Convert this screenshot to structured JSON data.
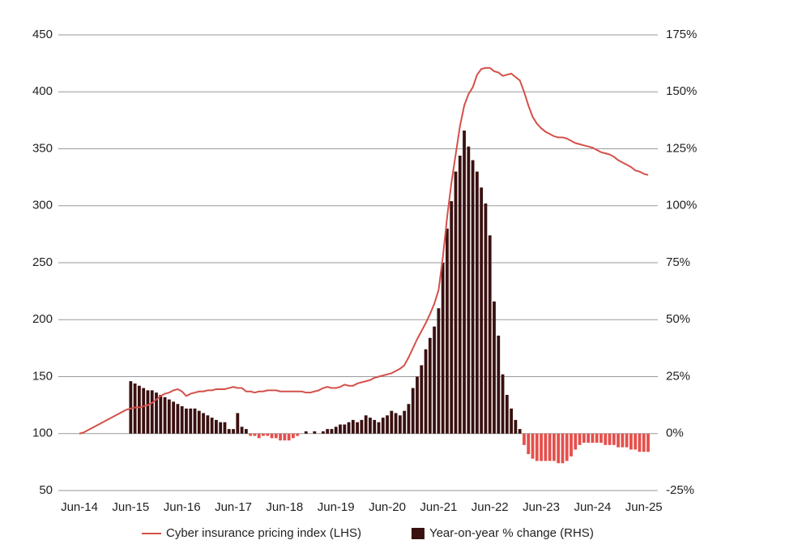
{
  "chart_data": {
    "type": "combo",
    "categories": [
      "Jun-14",
      null,
      null,
      null,
      null,
      null,
      null,
      null,
      null,
      null,
      null,
      null,
      "Jun-15",
      null,
      null,
      null,
      null,
      null,
      null,
      null,
      null,
      null,
      null,
      null,
      "Jun-16",
      null,
      null,
      null,
      null,
      null,
      null,
      null,
      null,
      null,
      null,
      null,
      "Jun-17",
      null,
      null,
      null,
      null,
      null,
      null,
      null,
      null,
      null,
      null,
      null,
      "Jun-18",
      null,
      null,
      null,
      null,
      null,
      null,
      null,
      null,
      null,
      null,
      null,
      "Jun-19",
      null,
      null,
      null,
      null,
      null,
      null,
      null,
      null,
      null,
      null,
      null,
      "Jun-20",
      null,
      null,
      null,
      null,
      null,
      null,
      null,
      null,
      null,
      null,
      null,
      "Jun-21",
      null,
      null,
      null,
      null,
      null,
      null,
      null,
      null,
      null,
      null,
      null,
      "Jun-22",
      null,
      null,
      null,
      null,
      null,
      null,
      null,
      null,
      null,
      null,
      null,
      "Jun-23",
      null,
      null,
      null,
      null,
      null,
      null,
      null,
      null,
      null,
      null,
      null,
      "Jun-24",
      null,
      null,
      null,
      null,
      null,
      null,
      null,
      null,
      null,
      null,
      null,
      "Jun-25",
      null
    ],
    "series": [
      {
        "name": "Cyber insurance pricing index (LHS)",
        "type": "line",
        "axis": "y",
        "color": "#d4504a",
        "values": [
          100,
          101,
          103,
          105,
          107,
          109,
          111,
          113,
          115,
          117,
          119,
          121,
          122,
          123,
          123,
          124,
          125,
          127,
          130,
          133,
          135,
          136,
          138,
          139,
          137,
          133,
          135,
          136,
          137,
          137,
          138,
          138,
          139,
          139,
          139,
          140,
          141,
          140,
          140,
          137,
          137,
          136,
          137,
          137,
          138,
          138,
          138,
          137,
          137,
          137,
          137,
          137,
          137,
          136,
          136,
          137,
          138,
          140,
          141,
          140,
          140,
          141,
          143,
          142,
          142,
          144,
          145,
          146,
          147,
          149,
          150,
          151,
          152,
          153,
          155,
          157,
          160,
          167,
          175,
          183,
          190,
          197,
          205,
          214,
          226,
          255,
          290,
          320,
          345,
          370,
          388,
          398,
          404,
          415,
          420,
          421,
          421,
          418,
          417,
          414,
          415,
          416,
          413,
          410,
          400,
          388,
          378,
          372,
          368,
          365,
          363,
          361,
          360,
          360,
          359,
          357,
          355,
          354,
          353,
          352,
          351,
          349,
          347,
          346,
          345,
          343,
          340,
          338,
          336,
          334,
          331,
          330,
          328,
          327
        ]
      },
      {
        "name": "Year-on-year % change (RHS)",
        "type": "bar",
        "axis": "y2",
        "color": "#3a1010",
        "negative_color": "#e5504c",
        "values": [
          null,
          null,
          null,
          null,
          null,
          null,
          null,
          null,
          null,
          null,
          null,
          null,
          23,
          22,
          21,
          20,
          19,
          19,
          18,
          17,
          16,
          15,
          14,
          13,
          12,
          11,
          11,
          11,
          10,
          9,
          8,
          7,
          6,
          5,
          5,
          2,
          2,
          9,
          3,
          2,
          -1,
          -1,
          -2,
          -1,
          -1,
          -2,
          -2,
          -3,
          -3,
          -3,
          -2,
          -1,
          0,
          1,
          0,
          1,
          0,
          1,
          2,
          2,
          3,
          4,
          4,
          5,
          6,
          5,
          6,
          8,
          7,
          6,
          5,
          7,
          8,
          10,
          9,
          8,
          10,
          13,
          20,
          25,
          30,
          37,
          42,
          47,
          55,
          75,
          90,
          102,
          115,
          122,
          133,
          126,
          120,
          115,
          108,
          101,
          87,
          58,
          43,
          26,
          17,
          11,
          6,
          2,
          -5,
          -9,
          -11,
          -12,
          -12,
          -12,
          -12,
          -12,
          -13,
          -13,
          -12,
          -10,
          -7,
          -5,
          -4,
          -4,
          -4,
          -4,
          -4,
          -5,
          -5,
          -5,
          -6,
          -6,
          -6,
          -7,
          -7,
          -8,
          -8,
          -8
        ]
      }
    ],
    "ylim": [
      50,
      450
    ],
    "yticks": [
      50,
      100,
      150,
      200,
      250,
      300,
      350,
      400,
      450
    ],
    "y2lim": [
      -25,
      175
    ],
    "y2ticks": [
      {
        "value": -25,
        "label": "-25%"
      },
      {
        "value": 0,
        "label": "0%"
      },
      {
        "value": 25,
        "label": "25%"
      },
      {
        "value": 50,
        "label": "50%"
      },
      {
        "value": 75,
        "label": "75%"
      },
      {
        "value": 100,
        "label": "100%"
      },
      {
        "value": 125,
        "label": "125%"
      },
      {
        "value": 150,
        "label": "150%"
      },
      {
        "value": 175,
        "label": "175%"
      }
    ],
    "grid": true,
    "legend": "bottom"
  }
}
